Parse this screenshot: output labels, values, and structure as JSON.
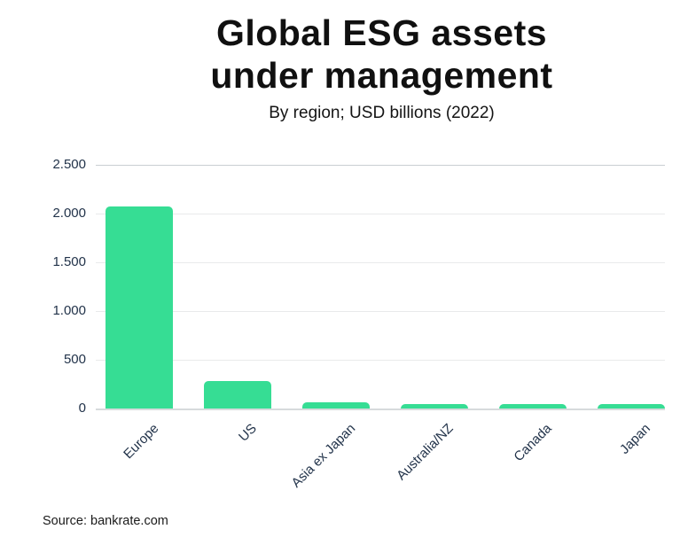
{
  "header": {
    "title_line1": "Global ESG assets",
    "title_line2": "under management",
    "subtitle": "By region; USD billions (2022)"
  },
  "footer": {
    "source": "Source: bankrate.com"
  },
  "chart_data": {
    "type": "bar",
    "title": "Global ESG assets under management",
    "subtitle": "By region; USD billions (2022)",
    "categories": [
      "Europe",
      "US",
      "Asia ex Japan",
      "Australia/NZ",
      "Canada",
      "Japan"
    ],
    "values": [
      2070,
      285,
      65,
      50,
      50,
      45
    ],
    "xlabel": "",
    "ylabel": "",
    "ylim": [
      0,
      2500
    ],
    "ytick_interval": 500,
    "ytick_labels": [
      "0",
      "500",
      "1.000",
      "1.500",
      "2.000",
      "2.500"
    ],
    "grid": true,
    "legend": false,
    "bar_color": "#36dd94",
    "axis_label_color": "#22334a",
    "gridline_color": "#e9eaeb",
    "source": "Source: bankrate.com"
  }
}
